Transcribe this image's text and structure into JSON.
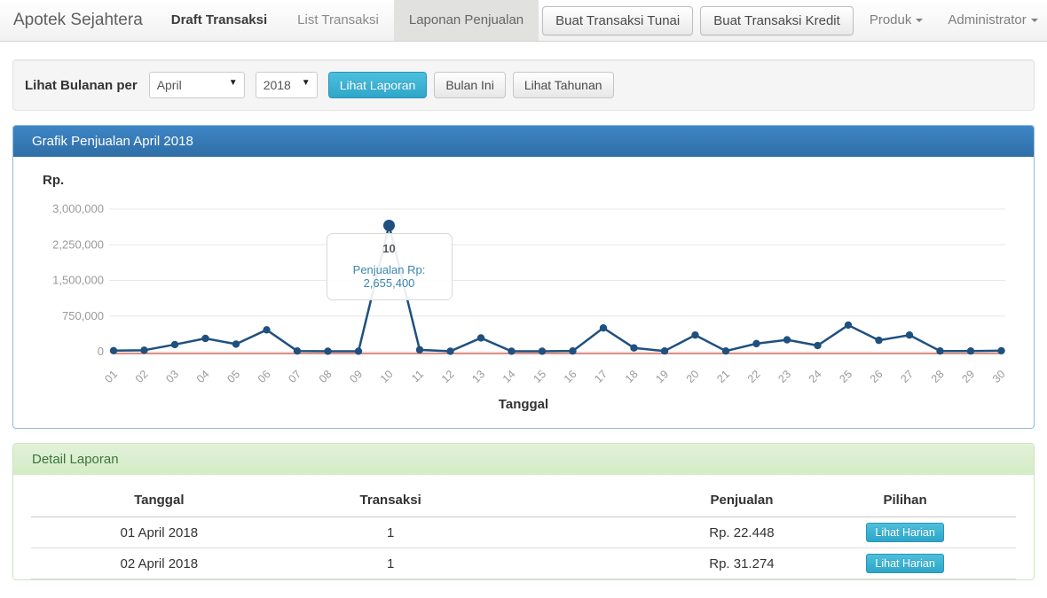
{
  "navbar": {
    "brand": "Apotek Sejahtera",
    "items": [
      {
        "label": "Draft Transaksi"
      },
      {
        "label": "List Transaksi"
      },
      {
        "label": "Laponan Penjualan"
      }
    ],
    "buttons": [
      {
        "label": "Buat Transaksi Tunai"
      },
      {
        "label": "Buat Transaksi Kredit"
      }
    ],
    "dropdowns": [
      {
        "label": "Produk"
      },
      {
        "label": "Administrator"
      }
    ]
  },
  "filter": {
    "label": "Lihat Bulanan per",
    "month": "April",
    "year": "2018",
    "actions": [
      {
        "label": "Lihat Laporan",
        "style": "info"
      },
      {
        "label": "Bulan Ini",
        "style": "default"
      },
      {
        "label": "Lihat Tahunan",
        "style": "default"
      }
    ]
  },
  "chart_panel": {
    "title": "Grafik Penjualan April 2018",
    "y_axis_label": "Rp.",
    "x_axis_label": "Tanggal"
  },
  "chart_data": {
    "type": "line",
    "title": "Grafik Penjualan April 2018",
    "xlabel": "Tanggal",
    "ylabel": "Rp.",
    "categories": [
      "01",
      "02",
      "03",
      "04",
      "05",
      "06",
      "07",
      "08",
      "09",
      "10",
      "11",
      "12",
      "13",
      "14",
      "15",
      "16",
      "17",
      "18",
      "19",
      "20",
      "21",
      "22",
      "23",
      "24",
      "25",
      "26",
      "27",
      "28",
      "29",
      "30"
    ],
    "series": [
      {
        "name": "Penjualan",
        "color": "#1f5080",
        "values": [
          22448,
          31274,
          150000,
          280000,
          160000,
          460000,
          15000,
          10000,
          10000,
          2655400,
          40000,
          10000,
          290000,
          10000,
          10000,
          15000,
          500000,
          80000,
          15000,
          350000,
          15000,
          170000,
          250000,
          130000,
          560000,
          240000,
          350000,
          15000,
          15000,
          20000
        ]
      },
      {
        "name": "Zero baseline",
        "color": "#dd8e82",
        "constant": 0
      }
    ],
    "ylim": [
      0,
      3000000
    ],
    "yticks": [
      3000000,
      2250000,
      1500000,
      750000,
      0
    ],
    "ytick_labels": [
      "3,000,000",
      "2,250,000",
      "1,500,000",
      "750,000",
      "0"
    ],
    "grid": true,
    "legend": "none",
    "highlight": {
      "index": 9,
      "category": "10",
      "value": 2655400
    },
    "tooltip": {
      "title": "10",
      "text": "Penjualan Rp: 2,655,400"
    }
  },
  "detail_panel": {
    "title": "Detail Laporan",
    "table": {
      "headers": [
        "Tanggal",
        "Transaksi",
        "Penjualan",
        "Pilihan"
      ],
      "rows": [
        {
          "tanggal": "01 April 2018",
          "transaksi": "1",
          "penjualan": "Rp. 22.448",
          "action_label": "Lihat Harian"
        },
        {
          "tanggal": "02 April 2018",
          "transaksi": "1",
          "penjualan": "Rp. 31.274",
          "action_label": "Lihat Harian"
        }
      ]
    }
  },
  "colors": {
    "panel_header_blue": "#336ea6",
    "info_button_teal": "#31a8cb",
    "line_blue": "#1f5080",
    "baseline_red": "#dd8e82",
    "success_header_bg": "#dff0d8",
    "success_header_text": "#3c763d",
    "grid_line": "#e7e7e7",
    "axis_text": "#9a9a9a"
  }
}
